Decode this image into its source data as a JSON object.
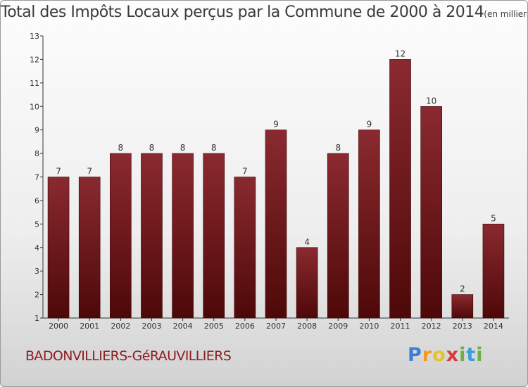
{
  "chart_data": {
    "type": "bar",
    "title": "Total des Impôts Locaux perçus par la Commune de 2000 à 2014",
    "unit_label": "(en milliers d'€)",
    "categories": [
      "2000",
      "2001",
      "2002",
      "2003",
      "2004",
      "2005",
      "2006",
      "2007",
      "2008",
      "2009",
      "2010",
      "2011",
      "2012",
      "2013",
      "2014"
    ],
    "values": [
      7,
      7,
      8,
      8,
      8,
      8,
      7,
      9,
      4,
      8,
      9,
      12,
      10,
      2,
      5
    ],
    "ylim": [
      1,
      13
    ],
    "yticks": [
      1,
      2,
      3,
      4,
      5,
      6,
      7,
      8,
      9,
      10,
      11,
      12,
      13
    ],
    "xlabel": "",
    "ylabel": "",
    "grid": false,
    "bar_color": "#7a1a20"
  },
  "footer": {
    "commune": "BADONVILLIERS-GéRAUVILLIERS",
    "logo": "Proxiti"
  }
}
